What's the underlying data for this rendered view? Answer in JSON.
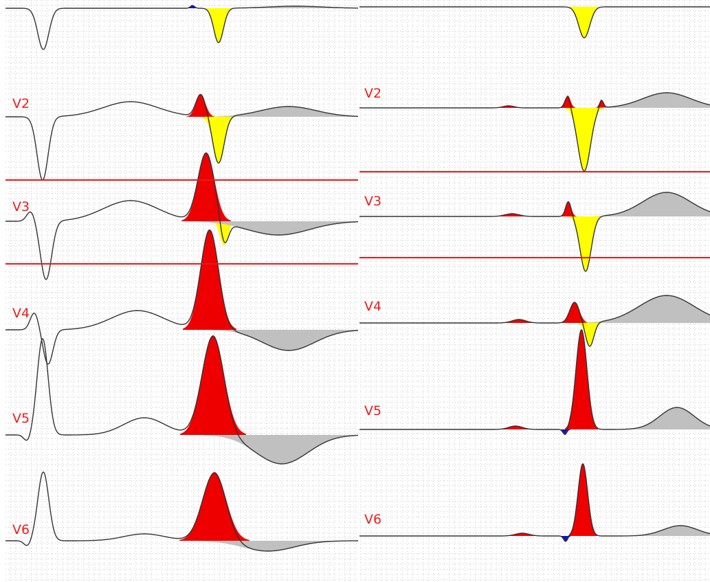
{
  "left_panel": {
    "leads": [
      "V2",
      "V3",
      "V4",
      "V5",
      "V6"
    ]
  },
  "right_panel": {
    "leads": [
      "V2",
      "V3",
      "V4",
      "V5",
      "V6"
    ]
  }
}
